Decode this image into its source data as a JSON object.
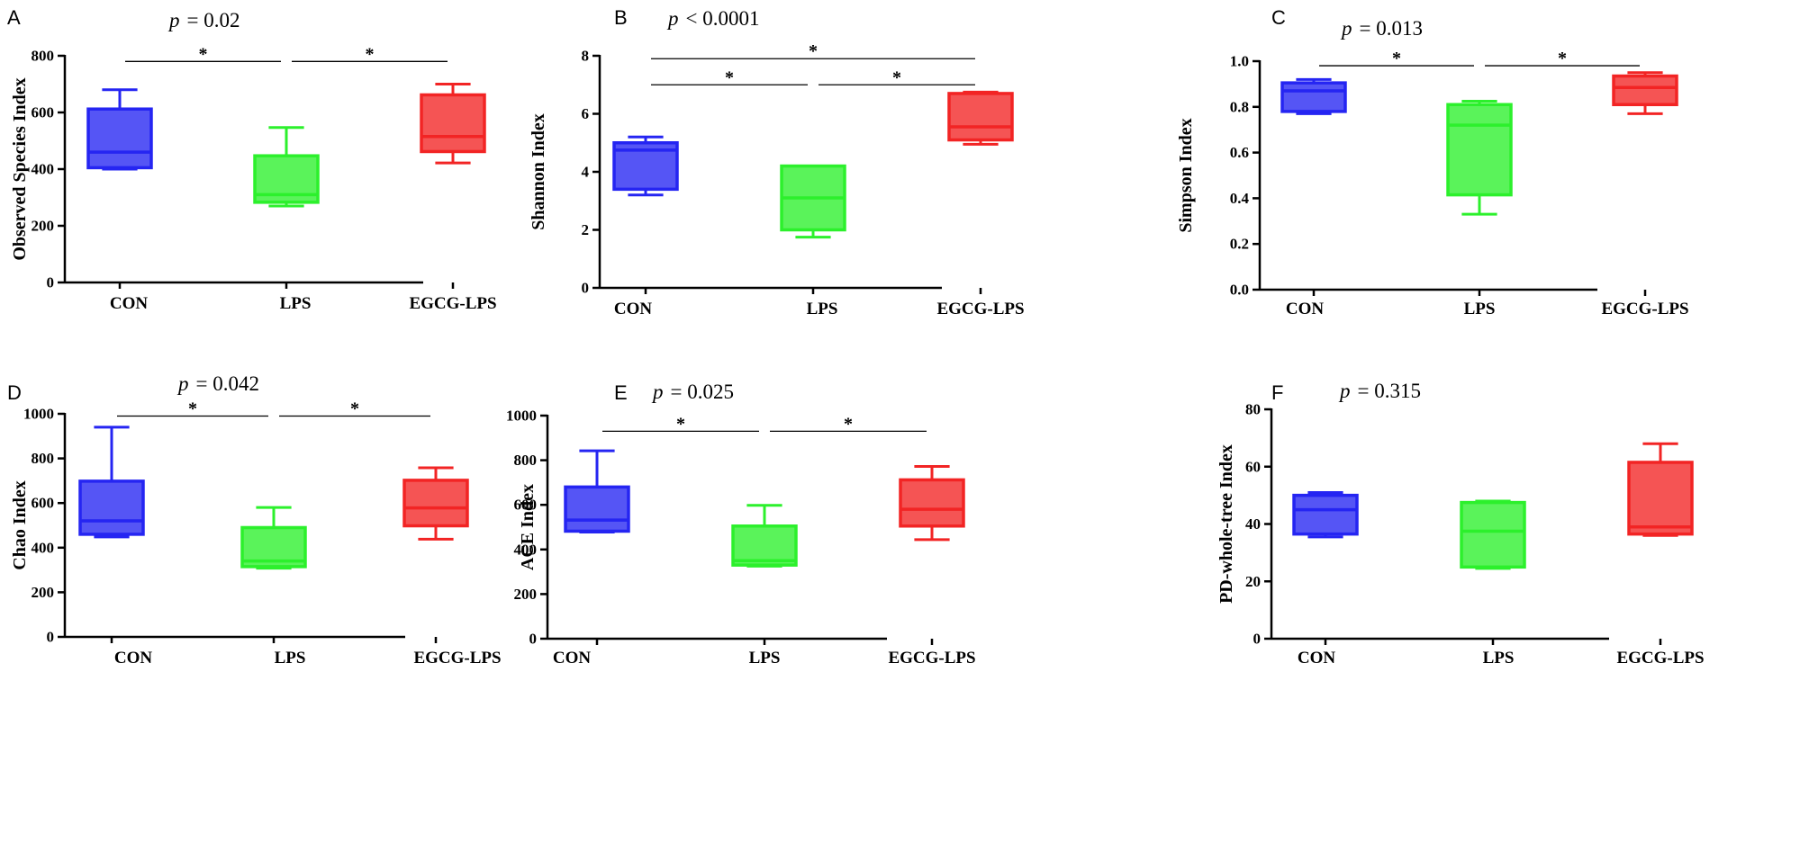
{
  "colors": {
    "CON": "#2525f2",
    "LPS": "#2cf02c",
    "EGCG-LPS": "#f22424",
    "axis": "#000000"
  },
  "chart_data": [
    {
      "panel": "A",
      "type": "box",
      "p_label": "p",
      "p_text": "= 0.02",
      "ylabel": "Observed Species Index",
      "ylim": [
        0,
        800
      ],
      "yticks": [
        "0",
        "200",
        "400",
        "600",
        "800"
      ],
      "categories": [
        "CON",
        "LPS",
        "EGCG-LPS"
      ],
      "boxes": [
        {
          "group": "CON",
          "min": 400,
          "q1": 405,
          "median": 460,
          "q3": 612,
          "max": 680
        },
        {
          "group": "LPS",
          "min": 270,
          "q1": 283,
          "median": 310,
          "q3": 447,
          "max": 547
        },
        {
          "group": "EGCG-LPS",
          "min": 422,
          "q1": 462,
          "median": 515,
          "q3": 662,
          "max": 700
        }
      ],
      "brackets": [
        {
          "from": 0,
          "to": 1,
          "y": 780,
          "label": "*"
        },
        {
          "from": 1,
          "to": 2,
          "y": 780,
          "label": "*"
        }
      ]
    },
    {
      "panel": "B",
      "type": "box",
      "p_label": "p",
      "p_text": "< 0.0001",
      "ylabel": "Shannon Index",
      "ylim": [
        0,
        8
      ],
      "yticks": [
        "0",
        "2",
        "4",
        "6",
        "8"
      ],
      "categories": [
        "CON",
        "LPS",
        "EGCG-LPS"
      ],
      "boxes": [
        {
          "group": "CON",
          "min": 3.2,
          "q1": 3.4,
          "median": 4.75,
          "q3": 5.0,
          "max": 5.2
        },
        {
          "group": "LPS",
          "min": 1.75,
          "q1": 2.0,
          "median": 3.1,
          "q3": 4.2,
          "max": 4.2
        },
        {
          "group": "EGCG-LPS",
          "min": 4.95,
          "q1": 5.1,
          "median": 5.55,
          "q3": 6.7,
          "max": 6.75
        }
      ],
      "brackets": [
        {
          "from": 0,
          "to": 2,
          "y": 7.9,
          "label": "*"
        },
        {
          "from": 0,
          "to": 1,
          "y": 7.0,
          "label": "*"
        },
        {
          "from": 1,
          "to": 2,
          "y": 7.0,
          "label": "*"
        }
      ]
    },
    {
      "panel": "C",
      "type": "box",
      "p_label": "p",
      "p_text": "= 0.013",
      "ylabel": "Simpson Index",
      "ylim": [
        0,
        1.0
      ],
      "yticks": [
        "0.0",
        "0.2",
        "0.4",
        "0.6",
        "0.8",
        "1.0"
      ],
      "categories": [
        "CON",
        "LPS",
        "EGCG-LPS"
      ],
      "boxes": [
        {
          "group": "CON",
          "min": 0.77,
          "q1": 0.78,
          "median": 0.87,
          "q3": 0.905,
          "max": 0.92
        },
        {
          "group": "LPS",
          "min": 0.33,
          "q1": 0.415,
          "median": 0.72,
          "q3": 0.81,
          "max": 0.825
        },
        {
          "group": "EGCG-LPS",
          "min": 0.77,
          "q1": 0.81,
          "median": 0.885,
          "q3": 0.935,
          "max": 0.95
        }
      ],
      "brackets": [
        {
          "from": 0,
          "to": 1,
          "y": 0.98,
          "label": "*"
        },
        {
          "from": 1,
          "to": 2,
          "y": 0.98,
          "label": "*"
        }
      ]
    },
    {
      "panel": "D",
      "type": "box",
      "p_label": "p",
      "p_text": "= 0.042",
      "ylabel": "Chao Index",
      "ylim": [
        0,
        1000
      ],
      "yticks": [
        "0",
        "200",
        "400",
        "600",
        "800",
        "1000"
      ],
      "categories": [
        "CON",
        "LPS",
        "EGCG-LPS"
      ],
      "boxes": [
        {
          "group": "CON",
          "min": 448,
          "q1": 460,
          "median": 520,
          "q3": 698,
          "max": 940
        },
        {
          "group": "LPS",
          "min": 308,
          "q1": 315,
          "median": 340,
          "q3": 490,
          "max": 580
        },
        {
          "group": "EGCG-LPS",
          "min": 438,
          "q1": 498,
          "median": 578,
          "q3": 702,
          "max": 758
        }
      ],
      "brackets": [
        {
          "from": 0,
          "to": 1,
          "y": 990,
          "label": "*"
        },
        {
          "from": 1,
          "to": 2,
          "y": 990,
          "label": "*"
        }
      ]
    },
    {
      "panel": "E",
      "type": "box",
      "p_label": "p",
      "p_text": "= 0.025",
      "ylabel": "ACE Index",
      "ylim": [
        0,
        1000
      ],
      "yticks": [
        "0",
        "200",
        "400",
        "600",
        "800",
        "1000"
      ],
      "categories": [
        "CON",
        "LPS",
        "EGCG-LPS"
      ],
      "boxes": [
        {
          "group": "CON",
          "min": 478,
          "q1": 482,
          "median": 532,
          "q3": 680,
          "max": 842
        },
        {
          "group": "LPS",
          "min": 325,
          "q1": 330,
          "median": 350,
          "q3": 505,
          "max": 598
        },
        {
          "group": "EGCG-LPS",
          "min": 444,
          "q1": 505,
          "median": 580,
          "q3": 712,
          "max": 772
        }
      ],
      "brackets": [
        {
          "from": 0,
          "to": 1,
          "y": 930,
          "label": "*"
        },
        {
          "from": 1,
          "to": 2,
          "y": 930,
          "label": "*"
        }
      ]
    },
    {
      "panel": "F",
      "type": "box",
      "p_label": "p",
      "p_text": "= 0.315",
      "ylabel": "PD-whole-tree Index",
      "ylim": [
        0,
        80
      ],
      "yticks": [
        "0",
        "20",
        "40",
        "60",
        "80"
      ],
      "categories": [
        "CON",
        "LPS",
        "EGCG-LPS"
      ],
      "boxes": [
        {
          "group": "CON",
          "min": 35.5,
          "q1": 36.5,
          "median": 45,
          "q3": 50,
          "max": 51
        },
        {
          "group": "LPS",
          "min": 24.5,
          "q1": 25,
          "median": 37.5,
          "q3": 47.5,
          "max": 48
        },
        {
          "group": "EGCG-LPS",
          "min": 36,
          "q1": 36.5,
          "median": 39,
          "q3": 61.5,
          "max": 68
        }
      ],
      "brackets": []
    }
  ]
}
